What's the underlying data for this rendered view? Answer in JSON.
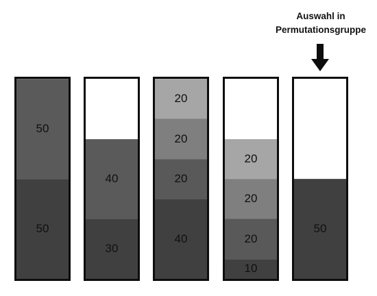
{
  "annotation": {
    "line1": "Auswahl in",
    "line2": "Permutationsgruppe"
  },
  "columns": [
    {
      "id": "col-1",
      "segments": [
        {
          "label": "50",
          "from": 0,
          "to": 50,
          "color": "#5a5a5a"
        },
        {
          "label": "50",
          "from": 50,
          "to": 100,
          "color": "#404040"
        }
      ]
    },
    {
      "id": "col-2",
      "segments": [
        {
          "label": "40",
          "from": 30,
          "to": 70,
          "color": "#5a5a5a"
        },
        {
          "label": "30",
          "from": 70,
          "to": 100,
          "color": "#404040"
        }
      ]
    },
    {
      "id": "col-3",
      "segments": [
        {
          "label": "20",
          "from": 0,
          "to": 20,
          "color": "#a6a6a6"
        },
        {
          "label": "20",
          "from": 20,
          "to": 40,
          "color": "#7f7f7f"
        },
        {
          "label": "20",
          "from": 40,
          "to": 60,
          "color": "#595959"
        },
        {
          "label": "40",
          "from": 60,
          "to": 100,
          "color": "#404040"
        }
      ]
    },
    {
      "id": "col-4",
      "segments": [
        {
          "label": "20",
          "from": 30,
          "to": 50,
          "color": "#a6a6a6"
        },
        {
          "label": "20",
          "from": 50,
          "to": 70,
          "color": "#7f7f7f"
        },
        {
          "label": "20",
          "from": 70,
          "to": 90,
          "color": "#595959"
        },
        {
          "label": "10",
          "from": 90,
          "to": 100,
          "color": "#404040"
        }
      ]
    },
    {
      "id": "col-5",
      "segments": [
        {
          "label": "50",
          "from": 50,
          "to": 100,
          "color": "#404040"
        }
      ]
    }
  ]
}
